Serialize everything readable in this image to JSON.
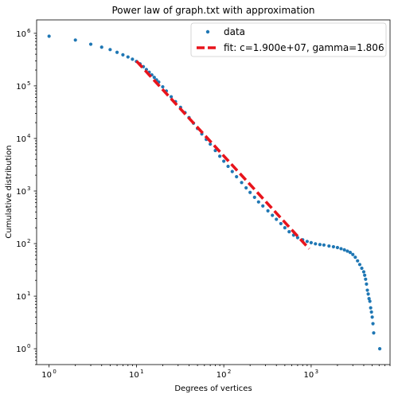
{
  "chart_data": {
    "type": "scatter",
    "title": "Power law of graph.txt with approximation",
    "xlabel": "Degrees of vertices",
    "ylabel": "Cumulative distribution",
    "xscale": "log",
    "yscale": "log",
    "xlim": [
      0.72,
      8000
    ],
    "ylim": [
      0.5,
      1800000
    ],
    "grid": false,
    "legend_position": "top-right",
    "x_ticks": [
      {
        "value": 1,
        "base": "10",
        "exp": "0"
      },
      {
        "value": 10,
        "base": "10",
        "exp": "1"
      },
      {
        "value": 100,
        "base": "10",
        "exp": "2"
      },
      {
        "value": 1000,
        "base": "10",
        "exp": "3"
      }
    ],
    "y_ticks": [
      {
        "value": 1,
        "base": "10",
        "exp": "0"
      },
      {
        "value": 10,
        "base": "10",
        "exp": "1"
      },
      {
        "value": 100,
        "base": "10",
        "exp": "2"
      },
      {
        "value": 1000,
        "base": "10",
        "exp": "3"
      },
      {
        "value": 10000,
        "base": "10",
        "exp": "4"
      },
      {
        "value": 100000,
        "base": "10",
        "exp": "5"
      },
      {
        "value": 1000000,
        "base": "10",
        "exp": "6"
      }
    ],
    "series": [
      {
        "name": "data",
        "kind": "scatter",
        "color": "#1f77b4",
        "points": [
          [
            1,
            880000
          ],
          [
            2,
            745000
          ],
          [
            3,
            620000
          ],
          [
            4,
            545000
          ],
          [
            5,
            490000
          ],
          [
            6,
            435000
          ],
          [
            7,
            390000
          ],
          [
            8,
            355000
          ],
          [
            9,
            322000
          ],
          [
            10,
            292000
          ],
          [
            11,
            262000
          ],
          [
            12,
            232000
          ],
          [
            13,
            205000
          ],
          [
            14,
            182000
          ],
          [
            15,
            162000
          ],
          [
            16,
            145000
          ],
          [
            17,
            130000
          ],
          [
            18,
            118000
          ],
          [
            20,
            96000
          ],
          [
            22,
            80000
          ],
          [
            25,
            62000
          ],
          [
            28,
            50000
          ],
          [
            32,
            39000
          ],
          [
            36,
            31000
          ],
          [
            40,
            25000
          ],
          [
            45,
            19500
          ],
          [
            50,
            15500
          ],
          [
            56,
            12200
          ],
          [
            63,
            9600
          ],
          [
            70,
            7800
          ],
          [
            80,
            5900
          ],
          [
            90,
            4600
          ],
          [
            100,
            3700
          ],
          [
            112,
            2950
          ],
          [
            125,
            2350
          ],
          [
            140,
            1870
          ],
          [
            160,
            1450
          ],
          [
            180,
            1150
          ],
          [
            200,
            940
          ],
          [
            225,
            760
          ],
          [
            250,
            620
          ],
          [
            280,
            520
          ],
          [
            320,
            420
          ],
          [
            360,
            345
          ],
          [
            400,
            290
          ],
          [
            450,
            240
          ],
          [
            500,
            200
          ],
          [
            560,
            168
          ],
          [
            630,
            145
          ],
          [
            700,
            130
          ],
          [
            800,
            118
          ],
          [
            900,
            110
          ],
          [
            1000,
            104
          ],
          [
            1120,
            99
          ],
          [
            1260,
            96
          ],
          [
            1400,
            94
          ],
          [
            1600,
            90
          ],
          [
            1800,
            87
          ],
          [
            2000,
            84
          ],
          [
            2200,
            80
          ],
          [
            2400,
            76
          ],
          [
            2600,
            72
          ],
          [
            2800,
            68
          ],
          [
            3000,
            62
          ],
          [
            3200,
            55
          ],
          [
            3400,
            47
          ],
          [
            3600,
            40
          ],
          [
            3800,
            34
          ],
          [
            4000,
            29
          ],
          [
            4100,
            25
          ],
          [
            4200,
            21
          ],
          [
            4300,
            17
          ],
          [
            4400,
            13
          ],
          [
            4500,
            11
          ],
          [
            4600,
            9
          ],
          [
            4700,
            8
          ],
          [
            4800,
            6
          ],
          [
            4900,
            5
          ],
          [
            5000,
            4
          ],
          [
            5100,
            3
          ],
          [
            5200,
            2
          ],
          [
            6100,
            1
          ]
        ]
      },
      {
        "name": "fit: c=1.900e+07, gamma=1.806",
        "kind": "line",
        "color": "#e8141c",
        "linestyle": "dashed",
        "c": 19000000,
        "gamma": 1.806,
        "x_range": [
          10,
          950
        ]
      }
    ]
  }
}
